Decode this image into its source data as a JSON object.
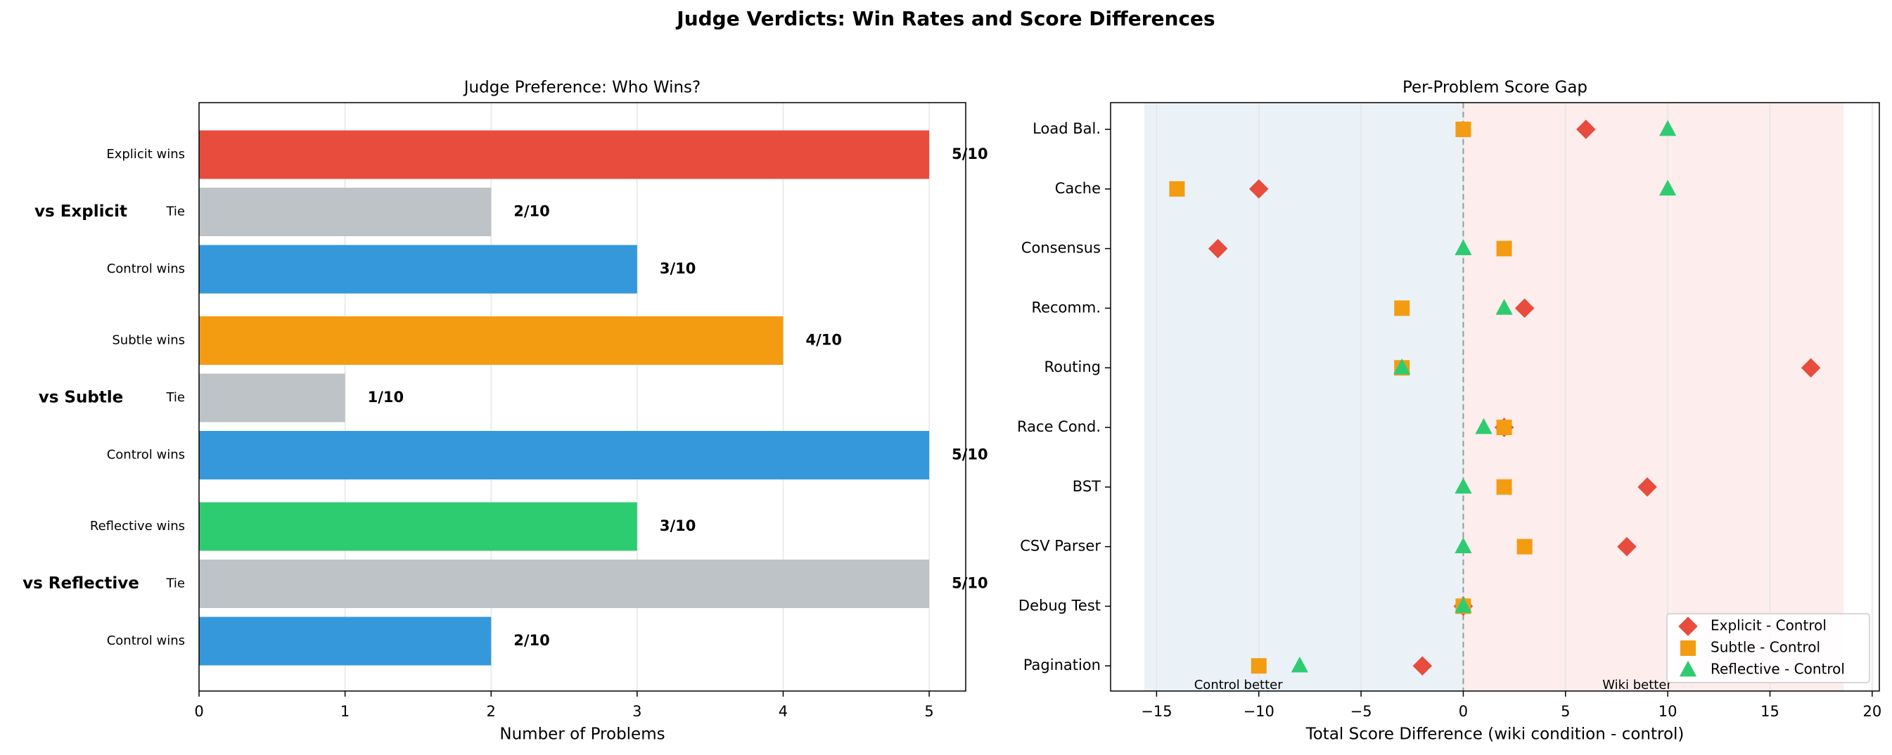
{
  "title": "Judge Verdicts: Win Rates and Score Differences",
  "chart_data": [
    {
      "type": "bar",
      "orientation": "horizontal",
      "title": "Judge Preference: Who Wins?",
      "xlabel": "Number of Problems",
      "xlim": [
        0,
        5.25
      ],
      "xticks": [
        0,
        1,
        2,
        3,
        4,
        5
      ],
      "grid": true,
      "groups": [
        {
          "label": "vs Explicit",
          "color": "#e74c3c",
          "categories": [
            "Explicit wins",
            "Tie",
            "Control wins"
          ],
          "values": [
            5,
            2,
            3
          ],
          "value_labels": [
            "5/10",
            "2/10",
            "3/10"
          ],
          "colors": [
            "#e74c3c",
            "#bdc3c7",
            "#3498db"
          ]
        },
        {
          "label": "vs Subtle",
          "color": "#f39c12",
          "categories": [
            "Subtle wins",
            "Tie",
            "Control wins"
          ],
          "values": [
            4,
            1,
            5
          ],
          "value_labels": [
            "4/10",
            "1/10",
            "5/10"
          ],
          "colors": [
            "#f39c12",
            "#bdc3c7",
            "#3498db"
          ]
        },
        {
          "label": "vs Reflective",
          "color": "#2ecc71",
          "categories": [
            "Reflective wins",
            "Tie",
            "Control wins"
          ],
          "values": [
            3,
            5,
            2
          ],
          "value_labels": [
            "3/10",
            "5/10",
            "2/10"
          ],
          "colors": [
            "#2ecc71",
            "#bdc3c7",
            "#3498db"
          ]
        }
      ]
    },
    {
      "type": "scatter",
      "title": "Per-Problem Score Gap",
      "xlabel": "Total Score Difference (wiki condition - control)",
      "xlim": [
        -17.25,
        20.35
      ],
      "xticks": [
        {
          "value": -15,
          "label": "−15"
        },
        {
          "value": -10,
          "label": "−10"
        },
        {
          "value": -5,
          "label": "−5"
        },
        0,
        5,
        10,
        15,
        20
      ],
      "grid": true,
      "legend": "lower right",
      "categories": [
        "Load Bal.",
        "Cache",
        "Consensus",
        "Recomm.",
        "Routing",
        "Race Cond.",
        "BST",
        "CSV Parser",
        "Debug Test",
        "Pagination"
      ],
      "regions": [
        {
          "from": -15.6,
          "to": 0,
          "color": "#eaf2f8",
          "label": "Control better",
          "label_x": -11,
          "label_color": "#5dade2"
        },
        {
          "from": 0,
          "to": 18.6,
          "color": "#fdeded",
          "label": "Wiki better",
          "label_x": 8.5,
          "label_color": "#e07060"
        }
      ],
      "series": [
        {
          "name": "Explicit - Control",
          "color": "#e74c3c",
          "marker": "diamond",
          "values": [
            6,
            -10,
            -12,
            3,
            17,
            2,
            9,
            8,
            0,
            -2
          ]
        },
        {
          "name": "Subtle - Control",
          "color": "#f39c12",
          "marker": "square",
          "values": [
            0,
            -14,
            2,
            -3,
            -3,
            2,
            2,
            3,
            0,
            -10
          ]
        },
        {
          "name": "Reflective - Control",
          "color": "#2ecc71",
          "marker": "triangle",
          "values": [
            10,
            10,
            0,
            2,
            -3,
            1,
            0,
            0,
            0,
            -8
          ]
        }
      ]
    }
  ]
}
